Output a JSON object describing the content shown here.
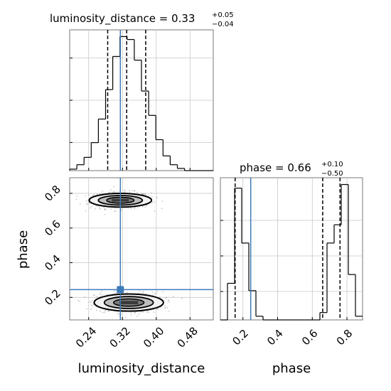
{
  "chart_data": {
    "type": "corner",
    "parameters": [
      "luminosity_distance",
      "phase"
    ],
    "grid": true,
    "colors": {
      "truth": "#3d7ab8",
      "hist": "#000000",
      "quantile": "#000000",
      "scatter": "#9a9a9a",
      "grid": "#c8c8c8"
    },
    "panels": [
      {
        "id": "hist-luminosity-distance",
        "parameter": "luminosity_distance",
        "title": {
          "text": "luminosity_distance = 0.33",
          "upper": "+0.05",
          "lower": "−0.04"
        },
        "xlim": [
          0.195,
          0.535
        ],
        "truth": 0.315,
        "quantiles": [
          0.285,
          0.33,
          0.375
        ],
        "bin_edges": [
          0.195,
          0.212,
          0.229,
          0.246,
          0.263,
          0.28,
          0.297,
          0.314,
          0.331,
          0.348,
          0.365,
          0.382,
          0.399,
          0.416,
          0.433,
          0.45,
          0.467,
          0.484,
          0.501,
          0.518,
          0.535
        ],
        "counts": [
          2,
          8,
          18,
          38,
          70,
          110,
          155,
          182,
          178,
          150,
          108,
          75,
          42,
          20,
          8,
          3,
          0,
          0,
          0,
          0
        ]
      },
      {
        "id": "hist-phase",
        "parameter": "phase",
        "title": {
          "text": "phase = 0.66",
          "upper": "+0.10",
          "lower": "−0.50"
        },
        "xlim": [
          0.07,
          0.89
        ],
        "xticks": [
          "0.2",
          "0.4",
          "0.6",
          "0.8"
        ],
        "xlabel": "phase",
        "truth": 0.245,
        "quantiles": [
          0.155,
          0.66,
          0.76
        ],
        "bin_edges": [
          0.07,
          0.111,
          0.152,
          0.193,
          0.234,
          0.275,
          0.316,
          0.357,
          0.398,
          0.439,
          0.48,
          0.521,
          0.562,
          0.603,
          0.644,
          0.685,
          0.726,
          0.767,
          0.808,
          0.849,
          0.89
        ],
        "counts": [
          0,
          50,
          180,
          105,
          40,
          5,
          0,
          0,
          0,
          0,
          0,
          0,
          0,
          0,
          10,
          105,
          130,
          185,
          62,
          5
        ]
      },
      {
        "id": "scatter-2d",
        "x_param": "luminosity_distance",
        "y_param": "phase",
        "xlim": [
          0.195,
          0.535
        ],
        "ylim": [
          0.07,
          0.89
        ],
        "xticks": [
          "0.24",
          "0.32",
          "0.40",
          "0.48"
        ],
        "yticks": [
          "0.2",
          "0.4",
          "0.6",
          "0.8"
        ],
        "xlabel": "luminosity_distance",
        "ylabel": "phase",
        "truth": {
          "x": 0.315,
          "y": 0.245
        },
        "clusters": [
          {
            "cx": 0.315,
            "cy": 0.76,
            "sx": 0.036,
            "sy": 0.024
          },
          {
            "cx": 0.335,
            "cy": 0.17,
            "sx": 0.04,
            "sy": 0.03
          }
        ]
      }
    ]
  }
}
